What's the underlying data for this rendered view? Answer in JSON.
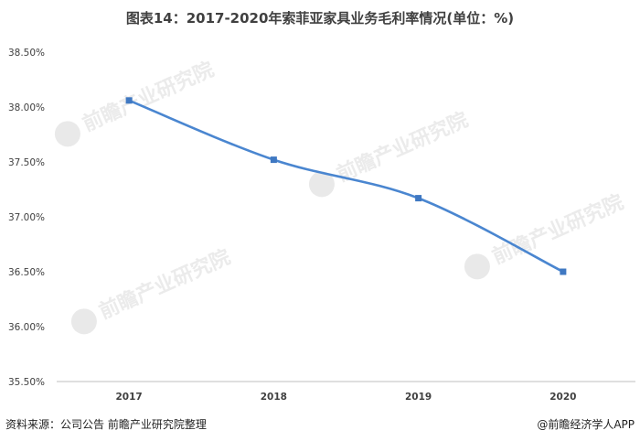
{
  "title": "图表14：2017-2020年索菲亚家具业务毛利率情况(单位：%)",
  "footer": {
    "source": "资料来源：公司公告 前瞻产业研究院整理",
    "brand": "@前瞻经济学人APP"
  },
  "watermark": "前瞻产业研究院",
  "colors": {
    "line": "#4a86d0",
    "marker": "#3f78c2"
  },
  "chart_data": {
    "type": "line",
    "categories": [
      "2017",
      "2018",
      "2019",
      "2020"
    ],
    "series": [
      {
        "values": [
          38.06,
          37.52,
          37.17,
          36.5
        ]
      }
    ],
    "yticks": [
      "35.50%",
      "36.00%",
      "36.50%",
      "37.00%",
      "37.50%",
      "38.00%",
      "38.50%"
    ],
    "ylim": [
      35.5,
      38.5
    ],
    "grid": false,
    "smooth": true
  }
}
